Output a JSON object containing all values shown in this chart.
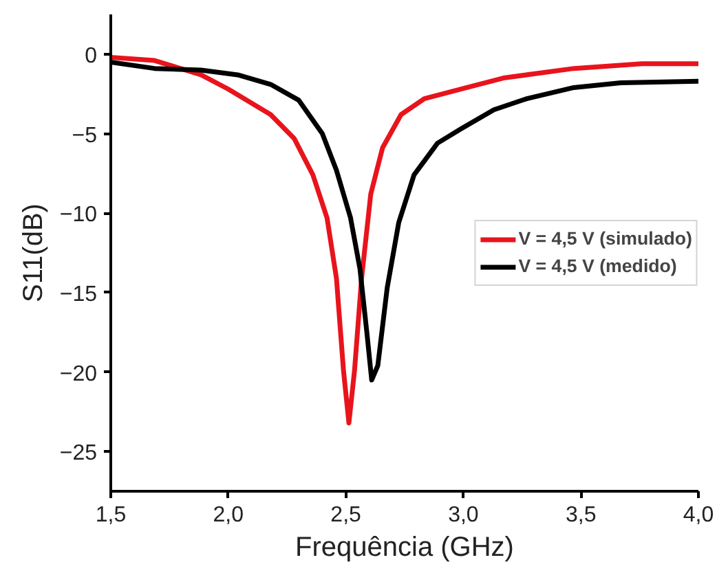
{
  "chart_data": {
    "type": "line",
    "xlabel": "Frequência (GHz)",
    "ylabel": "S11(dB)",
    "xlim": [
      1.5,
      4.0
    ],
    "ylim": [
      -27.5,
      2.5
    ],
    "xticks": [
      {
        "value": 1.5,
        "label": "1,5"
      },
      {
        "value": 2.0,
        "label": "2,0"
      },
      {
        "value": 2.5,
        "label": "2,5"
      },
      {
        "value": 3.0,
        "label": "3,0"
      },
      {
        "value": 3.5,
        "label": "3,5"
      },
      {
        "value": 4.0,
        "label": "4,0"
      }
    ],
    "yticks": [
      0,
      -5,
      -10,
      -15,
      -20,
      -25
    ],
    "grid": false,
    "legend": "right",
    "line_style": "solid",
    "marker": "none",
    "series": [
      {
        "name": "V = 4,5 V (simulado)",
        "color": "#e8141c",
        "x": [
          1.5,
          1.686,
          1.884,
          2.0,
          2.18,
          2.28,
          2.36,
          2.42,
          2.46,
          2.49,
          2.513,
          2.537,
          2.567,
          2.606,
          2.656,
          2.735,
          2.834,
          2.99,
          3.17,
          3.47,
          3.76,
          4.0
        ],
        "values": [
          -0.2,
          -0.4,
          -1.3,
          -2.2,
          -3.8,
          -5.3,
          -7.6,
          -10.3,
          -14.1,
          -19.9,
          -23.2,
          -19.9,
          -14.1,
          -8.8,
          -5.9,
          -3.8,
          -2.8,
          -2.2,
          -1.5,
          -0.9,
          -0.6,
          -0.6
        ]
      },
      {
        "name": "V = 4,5 V (medido)",
        "color": "#000000",
        "x": [
          1.5,
          1.686,
          1.884,
          2.04,
          2.18,
          2.3,
          2.4,
          2.46,
          2.52,
          2.56,
          2.59,
          2.61,
          2.636,
          2.676,
          2.725,
          2.79,
          2.89,
          2.99,
          3.13,
          3.27,
          3.47,
          3.67,
          4.0
        ],
        "values": [
          -0.5,
          -0.9,
          -1.0,
          -1.3,
          -1.9,
          -2.9,
          -5.0,
          -7.3,
          -10.3,
          -13.5,
          -17.6,
          -20.5,
          -19.6,
          -14.7,
          -10.6,
          -7.6,
          -5.6,
          -4.7,
          -3.5,
          -2.8,
          -2.1,
          -1.8,
          -1.7
        ]
      }
    ]
  }
}
